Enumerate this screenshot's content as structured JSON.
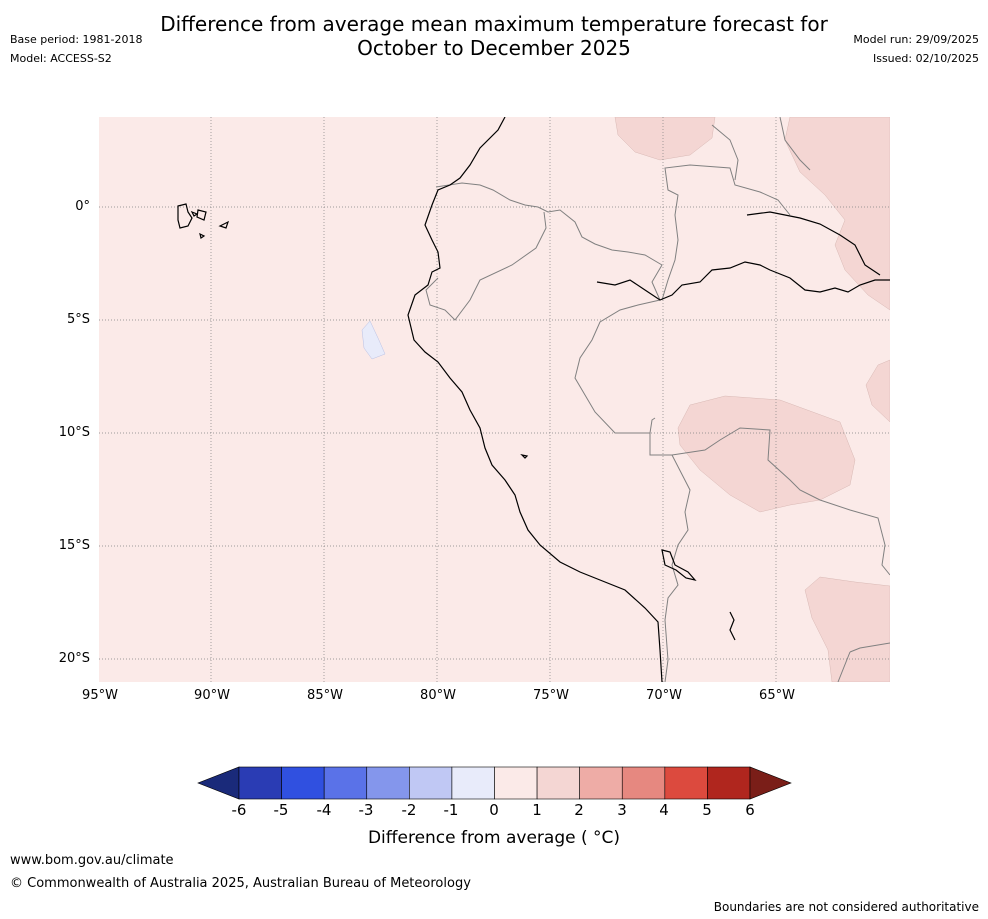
{
  "header": {
    "title_line1": "Difference from average mean maximum temperature forecast for",
    "title_line2": "October to December 2025",
    "base_period": "Base period: 1981-2018",
    "model": "Model: ACCESS-S2",
    "model_run": "Model run: 29/09/2025",
    "issued": "Issued: 02/10/2025"
  },
  "map": {
    "lat_labels": [
      "0°",
      "5°S",
      "10°S",
      "15°S",
      "20°S"
    ],
    "lon_labels": [
      "95°W",
      "90°W",
      "85°W",
      "80°W",
      "75°W",
      "70°W",
      "65°W"
    ],
    "colors": {
      "ocean_fill": "#fbeae8",
      "band_1_2": "#f4d6d3",
      "band_neg1_0": "#e8ebfa",
      "coastline": "#000000",
      "border": "#808080",
      "grid": "#808080"
    }
  },
  "colorbar": {
    "ticks": [
      "-6",
      "-5",
      "-4",
      "-3",
      "-2",
      "-1",
      "0",
      "1",
      "2",
      "3",
      "4",
      "5",
      "6"
    ],
    "colors": [
      "#1a2a7a",
      "#2a3cb4",
      "#3050e0",
      "#5a72e8",
      "#8496ec",
      "#c0c8f4",
      "#e8ebfa",
      "#fbeae8",
      "#f4d6d3",
      "#eeaca6",
      "#e68880",
      "#dc4a3e",
      "#b0261e",
      "#7a1e18"
    ],
    "label": "Difference from average ( °C)"
  },
  "footer": {
    "url": "www.bom.gov.au/climate",
    "copyright": "© Commonwealth of Australia 2025, Australian Bureau of Meteorology",
    "disclaimer": "Boundaries are not considered authoritative"
  }
}
